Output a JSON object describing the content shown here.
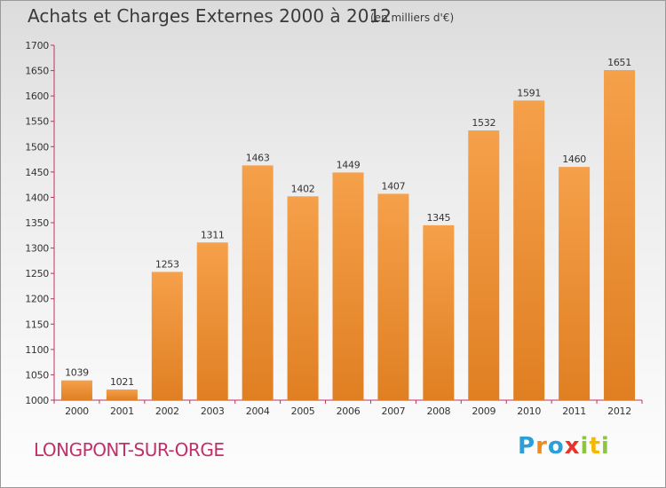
{
  "chart_data": {
    "type": "bar",
    "title": "Achats et Charges Externes 2000 à 2012",
    "subtitle": "(en milliers d'€)",
    "categories": [
      "2000",
      "2001",
      "2002",
      "2003",
      "2004",
      "2005",
      "2006",
      "2007",
      "2008",
      "2009",
      "2010",
      "2011",
      "2012"
    ],
    "values": [
      1039,
      1021,
      1253,
      1311,
      1463,
      1402,
      1449,
      1407,
      1345,
      1532,
      1591,
      1460,
      1651
    ],
    "ylim": [
      1000,
      1700
    ],
    "yticks": [
      1000,
      1050,
      1100,
      1150,
      1200,
      1250,
      1300,
      1350,
      1400,
      1450,
      1500,
      1550,
      1600,
      1650,
      1700
    ],
    "grid": false,
    "bar_color_top": "#f5a04a",
    "bar_color_bottom": "#e07f22",
    "axis_color": "#c0306a"
  },
  "footer": {
    "commune": "LONGPONT-SUR-ORGE",
    "commune_color": "#c0306a",
    "brand_letters": [
      {
        "ch": "P",
        "color": "#2a9fd8"
      },
      {
        "ch": "r",
        "color": "#f08a1c"
      },
      {
        "ch": "o",
        "color": "#2a9fd8"
      },
      {
        "ch": "x",
        "color": "#e8342a"
      },
      {
        "ch": "i",
        "color": "#8cc63f"
      },
      {
        "ch": "t",
        "color": "#f5b800"
      },
      {
        "ch": "i",
        "color": "#8cc63f"
      }
    ]
  }
}
